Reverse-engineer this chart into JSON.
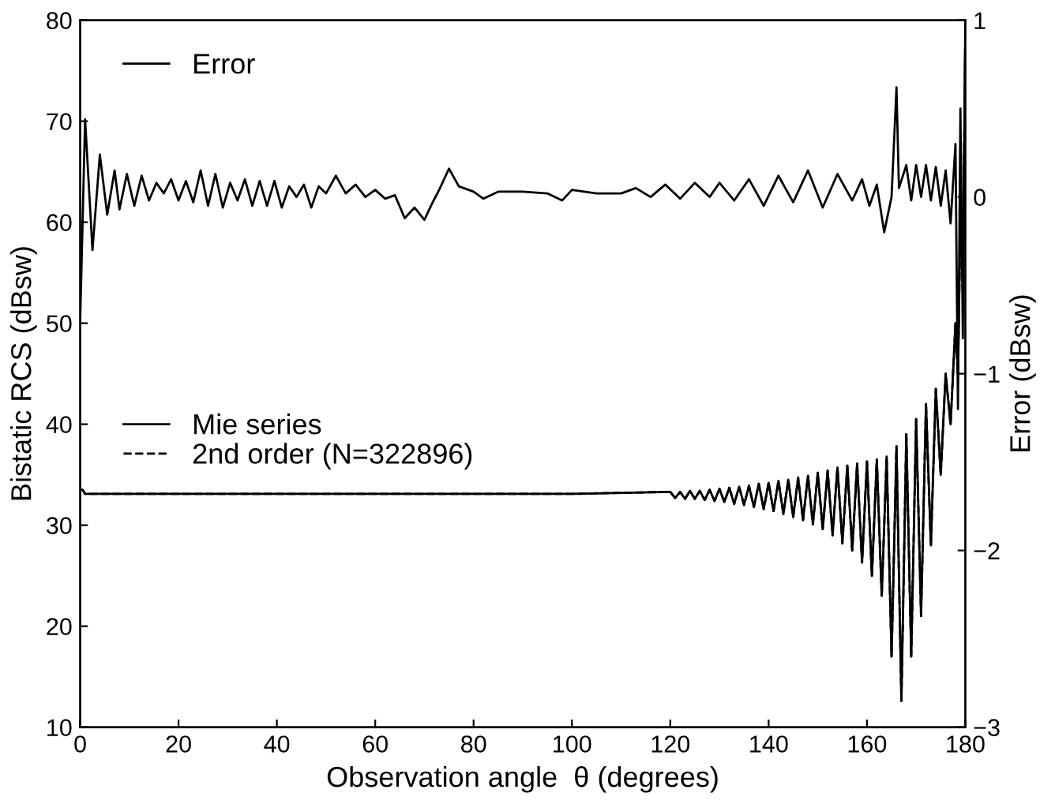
{
  "chart_data": {
    "type": "line",
    "xlabel": "Observation angle  θ (degrees)",
    "ylabel": "Bistatic RCS (dBsw)",
    "y2label": "Error (dBsw)",
    "xlim": [
      0,
      180
    ],
    "xticks": [
      0,
      20,
      40,
      60,
      80,
      100,
      120,
      140,
      160,
      180
    ],
    "ylim": [
      10,
      80
    ],
    "yticks": [
      10,
      20,
      30,
      40,
      50,
      60,
      70,
      80
    ],
    "y2lim": [
      -3,
      1
    ],
    "y2ticks": [
      {
        "value": -3,
        "label": "−3"
      },
      {
        "value": -2,
        "label": "−2"
      },
      {
        "value": -1,
        "label": "−1"
      },
      0,
      1
    ],
    "grid": false,
    "legend": "top left",
    "series": [
      {
        "name": "Error",
        "color": "#000000",
        "axis": "y2",
        "line_style": "solid",
        "x": [
          0,
          1,
          2.5,
          4,
          5.5,
          7,
          8,
          9.5,
          11,
          12.5,
          14,
          15.5,
          17,
          18.5,
          20,
          21.5,
          23,
          24.5,
          26,
          27.5,
          29,
          30.5,
          32,
          33.5,
          35,
          36.5,
          38,
          39.5,
          41,
          42.5,
          44,
          45.5,
          47,
          48.5,
          50,
          52,
          54,
          56,
          58,
          60,
          62,
          64,
          66,
          68,
          70,
          71.5,
          73,
          75,
          77,
          80,
          82,
          85,
          90,
          95,
          98,
          100,
          105,
          110,
          113,
          116,
          119,
          122,
          125,
          128,
          130,
          133,
          136,
          139,
          142,
          145,
          148,
          151,
          154,
          157,
          159,
          160.5,
          162,
          163.5,
          165,
          166,
          166.5,
          168,
          169,
          170,
          171,
          172,
          173,
          174,
          175,
          176,
          177,
          178,
          178.5,
          179,
          179.5,
          180
        ],
        "values": [
          -0.7,
          0.44,
          -0.3,
          0.24,
          -0.1,
          0.15,
          -0.07,
          0.13,
          -0.05,
          0.12,
          -0.02,
          0.08,
          0.02,
          0.1,
          -0.02,
          0.09,
          -0.03,
          0.15,
          -0.05,
          0.13,
          -0.06,
          0.08,
          -0.02,
          0.1,
          -0.05,
          0.09,
          -0.05,
          0.09,
          -0.06,
          0.06,
          0.0,
          0.07,
          -0.06,
          0.06,
          0.02,
          0.12,
          0.02,
          0.07,
          0.0,
          0.04,
          -0.01,
          0.01,
          -0.12,
          -0.06,
          -0.13,
          -0.04,
          0.04,
          0.16,
          0.06,
          0.03,
          -0.01,
          0.03,
          0.03,
          0.02,
          -0.02,
          0.04,
          0.02,
          0.02,
          0.05,
          0.0,
          0.07,
          -0.01,
          0.08,
          0.0,
          0.08,
          -0.02,
          0.1,
          -0.05,
          0.12,
          -0.03,
          0.15,
          -0.06,
          0.13,
          -0.02,
          0.1,
          -0.05,
          0.07,
          -0.2,
          0.0,
          0.62,
          0.05,
          0.18,
          -0.02,
          0.18,
          0.0,
          0.18,
          -0.02,
          0.17,
          -0.05,
          0.15,
          -0.15,
          0.3,
          -1.2,
          0.5,
          -0.8,
          1.0
        ]
      },
      {
        "name": "Mie series",
        "color": "#000000",
        "line_style": "solid",
        "x": [
          0,
          0.5,
          1,
          5,
          20,
          40,
          60,
          80,
          100,
          120,
          121,
          122,
          123,
          124,
          125,
          126,
          127,
          128,
          129,
          130,
          131,
          132,
          133,
          134,
          135,
          136,
          137,
          138,
          139,
          140,
          141,
          142,
          143,
          144,
          145,
          146,
          147,
          148,
          149,
          150,
          151,
          152,
          153,
          154,
          155,
          156,
          157,
          158,
          159,
          160,
          161,
          162,
          163,
          164,
          165,
          166,
          167,
          168,
          169,
          170,
          171,
          172,
          173,
          174,
          175,
          176,
          177,
          178,
          178.5,
          179,
          179.5,
          180
        ],
        "values": [
          33.5,
          33.5,
          33.1,
          33.1,
          33.1,
          33.1,
          33.1,
          33.1,
          33.1,
          33.3,
          32.7,
          33.3,
          32.6,
          33.4,
          32.6,
          33.4,
          32.5,
          33.5,
          32.4,
          33.6,
          32.3,
          33.7,
          32.1,
          33.8,
          32,
          33.9,
          31.8,
          34.1,
          31.6,
          34.2,
          31.4,
          34.4,
          31.1,
          34.5,
          30.8,
          34.7,
          30.5,
          34.9,
          30.1,
          35.2,
          29.6,
          35.4,
          29,
          35.7,
          28.2,
          35.9,
          27.5,
          36.1,
          26.3,
          36.3,
          25,
          36.5,
          23,
          36.8,
          17,
          37.8,
          12.6,
          39,
          17,
          40.5,
          21,
          42,
          28,
          43.5,
          35,
          45,
          40,
          50,
          45,
          60,
          55,
          78
        ]
      },
      {
        "name": "2nd order (N=322896)",
        "color": "#000000",
        "line_style": "dashed",
        "x": [
          0,
          0.5,
          1,
          5,
          20,
          40,
          60,
          80,
          100,
          120,
          121,
          122,
          123,
          124,
          125,
          126,
          127,
          128,
          129,
          130,
          131,
          132,
          133,
          134,
          135,
          136,
          137,
          138,
          139,
          140,
          141,
          142,
          143,
          144,
          145,
          146,
          147,
          148,
          149,
          150,
          151,
          152,
          153,
          154,
          155,
          156,
          157,
          158,
          159,
          160,
          161,
          162,
          163,
          164,
          165,
          166,
          167,
          168,
          169,
          170,
          171,
          172,
          173,
          174,
          175,
          176,
          177,
          178,
          178.5,
          179,
          179.5,
          180
        ],
        "values": [
          33.5,
          33.5,
          33.1,
          33.1,
          33.1,
          33.1,
          33.1,
          33.1,
          33.1,
          33.3,
          32.7,
          33.3,
          32.6,
          33.4,
          32.6,
          33.4,
          32.5,
          33.5,
          32.4,
          33.6,
          32.3,
          33.7,
          32.1,
          33.8,
          32,
          33.9,
          31.8,
          34.1,
          31.6,
          34.2,
          31.4,
          34.4,
          31.1,
          34.5,
          30.8,
          34.7,
          30.5,
          34.9,
          30.1,
          35.2,
          29.6,
          35.4,
          29,
          35.7,
          28.2,
          35.9,
          27.5,
          36.1,
          26.3,
          36.3,
          25,
          36.5,
          23,
          36.8,
          17,
          37.8,
          12.6,
          39,
          17,
          40.5,
          21,
          42,
          28,
          43.5,
          35,
          45,
          40,
          50,
          45,
          60,
          55,
          78
        ]
      }
    ]
  }
}
